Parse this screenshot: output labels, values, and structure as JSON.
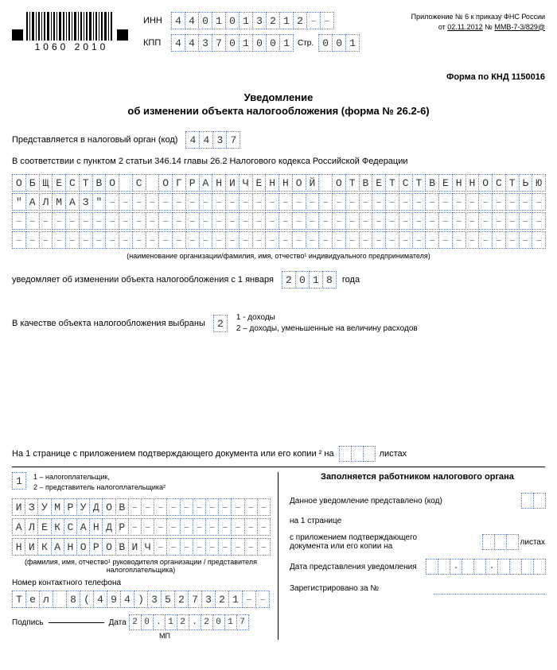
{
  "header": {
    "barcode_number": "1060 2010",
    "inn_label": "ИНН",
    "inn": [
      "4",
      "4",
      "0",
      "1",
      "0",
      "1",
      "3",
      "2",
      "1",
      "2",
      "–",
      "–"
    ],
    "kpp_label": "КПП",
    "kpp": [
      "4",
      "4",
      "3",
      "7",
      "0",
      "1",
      "0",
      "0",
      "1"
    ],
    "page_label": "Стр.",
    "page": [
      "0",
      "0",
      "1"
    ],
    "appendix_line1": "Приложение № 6 к приказу ФНС России",
    "appendix_date": "02.11.2012",
    "appendix_from": "от",
    "appendix_num_label": "№",
    "appendix_num": "ММВ-7-3/829@"
  },
  "form_code": "Форма по КНД 1150016",
  "title": "Уведомление",
  "subtitle": "об изменении объекта налогообложения (форма № 26.2-6)",
  "submitted_label": "Представляется в налоговый орган (код)",
  "submitted_code": [
    "4",
    "4",
    "3",
    "7"
  ],
  "law_ref": "В соответствии с пунктом 2 статьи 346.14 главы 26.2 Налогового кодекса Российской Федерации",
  "org_rows": [
    [
      "О",
      "Б",
      "Щ",
      "Е",
      "С",
      "Т",
      "В",
      "О",
      "",
      "С",
      "",
      "О",
      "Г",
      "Р",
      "А",
      "Н",
      "И",
      "Ч",
      "Е",
      "Н",
      "Н",
      "О",
      "Й",
      "",
      "О",
      "Т",
      "В",
      "Е",
      "Т",
      "С",
      "Т",
      "В",
      "Е",
      "Н",
      "Н",
      "О",
      "С",
      "Т",
      "Ь",
      "Ю"
    ],
    [
      "\"",
      "А",
      "Л",
      "М",
      "А",
      "З",
      "\"",
      "–",
      "–",
      "–",
      "–",
      "–",
      "–",
      "–",
      "–",
      "–",
      "–",
      "–",
      "–",
      "–",
      "–",
      "–",
      "–",
      "–",
      "–",
      "–",
      "–",
      "–",
      "–",
      "–",
      "–",
      "–",
      "–",
      "–",
      "–",
      "–",
      "–",
      "–",
      "–",
      "–"
    ],
    [
      "–",
      "–",
      "–",
      "–",
      "–",
      "–",
      "–",
      "–",
      "–",
      "–",
      "–",
      "–",
      "–",
      "–",
      "–",
      "–",
      "–",
      "–",
      "–",
      "–",
      "–",
      "–",
      "–",
      "–",
      "–",
      "–",
      "–",
      "–",
      "–",
      "–",
      "–",
      "–",
      "–",
      "–",
      "–",
      "–",
      "–",
      "–",
      "–",
      "–"
    ],
    [
      "–",
      "–",
      "–",
      "–",
      "–",
      "–",
      "–",
      "–",
      "–",
      "–",
      "–",
      "–",
      "–",
      "–",
      "–",
      "–",
      "–",
      "–",
      "–",
      "–",
      "–",
      "–",
      "–",
      "–",
      "–",
      "–",
      "–",
      "–",
      "–",
      "–",
      "–",
      "–",
      "–",
      "–",
      "–",
      "–",
      "–",
      "–",
      "–",
      "–"
    ]
  ],
  "org_caption": "(наименование организации/фамилия, имя, отчество¹ индивидуального предпринимателя)",
  "notify_label": "уведомляет об изменении объекта налогообложения с 1 января",
  "year": [
    "2",
    "0",
    "1",
    "8"
  ],
  "year_label": "года",
  "object_label": "В качестве объекта налогообложения выбраны",
  "object_value": [
    "2"
  ],
  "object_desc1": "1 - доходы",
  "object_desc2": "2 – доходы, уменьшенные на  величину расходов",
  "attach_prefix": "На",
  "attach_page": "1",
  "attach_mid": "странице с приложением подтверждающего документа  или его копии ² на",
  "attach_cells": [
    "",
    "",
    ""
  ],
  "attach_suffix": "листах",
  "left": {
    "declarer_code": [
      "1"
    ],
    "declarer_desc1": "1 – налогоплательщик,",
    "declarer_desc2": "2 – представитель налогоплательщика²",
    "fio": [
      [
        "И",
        "З",
        "У",
        "М",
        "Р",
        "У",
        "Д",
        "О",
        "В",
        "–",
        "–",
        "–",
        "–",
        "–",
        "–",
        "–",
        "–",
        "–",
        "–",
        "–"
      ],
      [
        "А",
        "Л",
        "Е",
        "К",
        "С",
        "А",
        "Н",
        "Д",
        "Р",
        "–",
        "–",
        "–",
        "–",
        "–",
        "–",
        "–",
        "–",
        "–",
        "–",
        "–"
      ],
      [
        "Н",
        "И",
        "К",
        "А",
        "Н",
        "О",
        "Р",
        "О",
        "В",
        "И",
        "Ч",
        "–",
        "–",
        "–",
        "–",
        "–",
        "–",
        "–",
        "–",
        "–"
      ]
    ],
    "fio_caption": "(фамилия, имя, отчество¹ руководителя организации / представителя налогоплательщика)",
    "phone_label": "Номер контактного телефона",
    "phone": [
      "Т",
      "е",
      "л",
      "",
      "8",
      "(",
      "4",
      "9",
      "4",
      ")",
      "3",
      "5",
      "2",
      "7",
      "3",
      "2",
      "1",
      "–",
      "–"
    ],
    "sign_label": "Подпись",
    "date_label": "Дата",
    "date": [
      "2",
      "0",
      ".",
      "1",
      "2",
      ".",
      "2",
      "0",
      "1",
      "7"
    ],
    "mp": "МП"
  },
  "right": {
    "title": "Заполняется работником налогового органа",
    "presented_label": "Данное уведомление представлено (код)",
    "on_page": "на 1 странице",
    "attach_label1": "с приложением подтверждающего",
    "attach_label2": "документа или его копии на",
    "attach_cells": [
      "",
      "",
      ""
    ],
    "attach_suffix": "листах",
    "date_pres_label": "Дата представления уведомления",
    "reg_label": "Зарегистрировано за №"
  }
}
